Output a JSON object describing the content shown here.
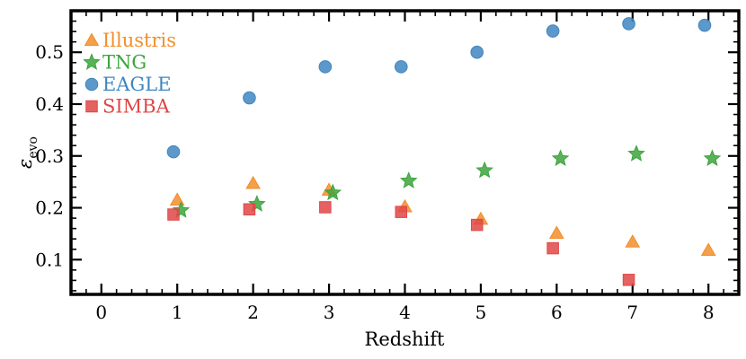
{
  "chart_data": {
    "type": "scatter",
    "title": "",
    "xlabel": "Redshift",
    "ylabel": "ε",
    "ylabel_subscript": "evo",
    "xlim": [
      -0.4,
      8.4
    ],
    "ylim": [
      0.033,
      0.58
    ],
    "xticks": [
      0,
      1,
      2,
      3,
      4,
      5,
      6,
      7,
      8
    ],
    "yticks": [
      0.1,
      0.2,
      0.3,
      0.4,
      0.5
    ],
    "ytick_labels": [
      "0.1",
      "0.2",
      "0.3",
      "0.4",
      "0.5"
    ],
    "grid": false,
    "legend_position": "top-left",
    "series": [
      {
        "name": "Illustris",
        "marker": "triangle",
        "color": "#f28e2b",
        "points": [
          [
            1.0,
            0.215
          ],
          [
            2.0,
            0.247
          ],
          [
            3.0,
            0.234
          ],
          [
            4.0,
            0.202
          ],
          [
            5.0,
            0.178
          ],
          [
            6.0,
            0.151
          ],
          [
            7.0,
            0.134
          ],
          [
            8.0,
            0.118
          ]
        ]
      },
      {
        "name": "TNG",
        "marker": "star",
        "color": "#3ca53c",
        "points": [
          [
            1.05,
            0.195
          ],
          [
            2.05,
            0.207
          ],
          [
            3.05,
            0.229
          ],
          [
            4.05,
            0.252
          ],
          [
            5.05,
            0.272
          ],
          [
            6.05,
            0.295
          ],
          [
            7.05,
            0.304
          ],
          [
            8.05,
            0.295
          ]
        ]
      },
      {
        "name": "EAGLE",
        "marker": "circle",
        "color": "#3f86bf",
        "points": [
          [
            0.95,
            0.308
          ],
          [
            1.95,
            0.412
          ],
          [
            2.95,
            0.472
          ],
          [
            3.95,
            0.472
          ],
          [
            4.95,
            0.5
          ],
          [
            5.95,
            0.541
          ],
          [
            6.95,
            0.555
          ],
          [
            7.95,
            0.552
          ]
        ]
      },
      {
        "name": "SIMBA",
        "marker": "square",
        "color": "#e04646",
        "points": [
          [
            0.95,
            0.187
          ],
          [
            1.95,
            0.197
          ],
          [
            2.95,
            0.201
          ],
          [
            3.95,
            0.192
          ],
          [
            4.95,
            0.167
          ],
          [
            5.95,
            0.122
          ],
          [
            6.95,
            0.061
          ]
        ]
      }
    ]
  }
}
